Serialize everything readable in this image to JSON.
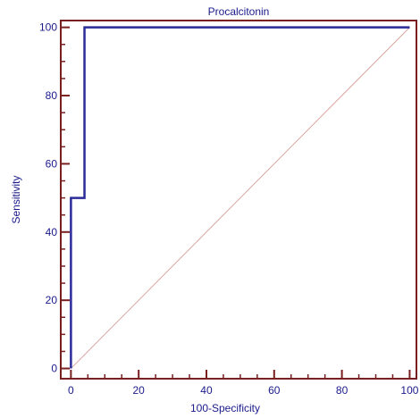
{
  "chart_data": {
    "type": "line",
    "title": "Procalcitonin",
    "xlabel": "100-Specificity",
    "ylabel": "Sensitivity",
    "xlim": [
      -3,
      102
    ],
    "ylim": [
      -3,
      102
    ],
    "xticks": [
      0,
      20,
      40,
      60,
      80,
      100
    ],
    "yticks": [
      0,
      20,
      40,
      60,
      80,
      100
    ],
    "xtick_labels": [
      "0",
      "20",
      "40",
      "60",
      "80",
      "100"
    ],
    "ytick_labels": [
      "0",
      "20",
      "40",
      "60",
      "80",
      "100"
    ],
    "grid": false,
    "series": [
      {
        "kind": "roc-step",
        "color": "#2b2b9a",
        "x": [
          0,
          0,
          4,
          4,
          100
        ],
        "y": [
          0,
          50,
          50,
          100,
          100
        ]
      },
      {
        "kind": "reference-diagonal",
        "color": "#d9a6a0",
        "x": [
          0,
          100
        ],
        "y": [
          0,
          100
        ]
      }
    ],
    "frame_color": "#7a1f1f",
    "text_color": "#1a1a8c"
  }
}
